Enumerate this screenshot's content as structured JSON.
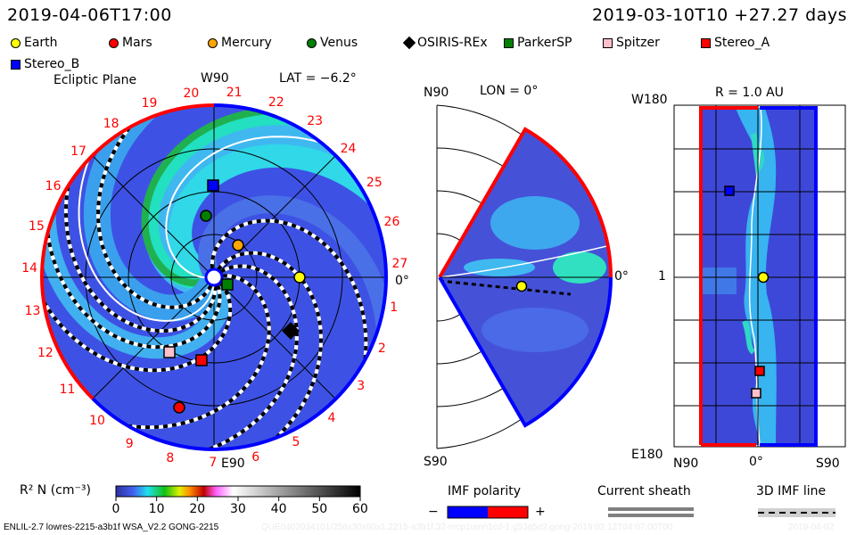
{
  "header": {
    "sim_time": "2019-04-06T17:00",
    "ref_time": "2019-03-10T10 +27.27 days"
  },
  "legend": [
    {
      "name": "Earth",
      "color": "#ffff00",
      "shape": "circle"
    },
    {
      "name": "Mars",
      "color": "#ff0000",
      "shape": "circle"
    },
    {
      "name": "Mercury",
      "color": "#ffa500",
      "shape": "circle"
    },
    {
      "name": "Venus",
      "color": "#007f00",
      "shape": "circle"
    },
    {
      "name": "OSIRIS-REx",
      "color": "#000000",
      "shape": "diamond"
    },
    {
      "name": "ParkerSP",
      "color": "#007f00",
      "shape": "square"
    },
    {
      "name": "Spitzer",
      "color": "#ffc0cb",
      "shape": "square"
    },
    {
      "name": "Stereo_A",
      "color": "#ff0000",
      "shape": "square"
    },
    {
      "name": "Stereo_B",
      "color": "#0000ff",
      "shape": "square"
    }
  ],
  "ecliptic": {
    "title": "Ecliptic Plane",
    "lat": "LAT = −6.2°",
    "top_label": "W90",
    "bottom_label": "E90",
    "right_label": "0°",
    "carrington": [
      "1",
      "2",
      "3",
      "4",
      "5",
      "6",
      "7",
      "8",
      "9",
      "10",
      "11",
      "12",
      "13",
      "14",
      "15",
      "16",
      "17",
      "18",
      "19",
      "20",
      "21",
      "22",
      "23",
      "24",
      "25",
      "26",
      "27"
    ]
  },
  "meridional": {
    "title": "LON = 0°",
    "top_label": "N90",
    "bottom_label": "S90",
    "right_label": "0°"
  },
  "radial": {
    "title": "R = 1.0 AU",
    "top_left": "W180",
    "mid_left": "1",
    "bottom_left": "E180",
    "x_labels": [
      "N90",
      "0°",
      "S90"
    ]
  },
  "colorbar": {
    "label": "R² N (cm⁻³)",
    "ticks": [
      "0",
      "10",
      "20",
      "30",
      "40",
      "50",
      "60"
    ],
    "range": [
      0,
      60
    ]
  },
  "imf": {
    "label": "IMF polarity",
    "minus": "−",
    "plus": "+",
    "neg_color": "#0000ff",
    "pos_color": "#ff0000"
  },
  "sheath": {
    "label": "Current sheath"
  },
  "imf3d": {
    "label": "3D IMF line"
  },
  "footer": {
    "model": "ENLIL-2.7 lowres-2215-a3b1f WSA_V2.2 GONG-2215",
    "run": "QUE0402034101/256x30x90x1.2215-a3b1f.32-mcp1umn1cd-1.g53q5d2.gong-2019:02:12T04:07:00T00",
    "date": "2019-04-02"
  }
}
